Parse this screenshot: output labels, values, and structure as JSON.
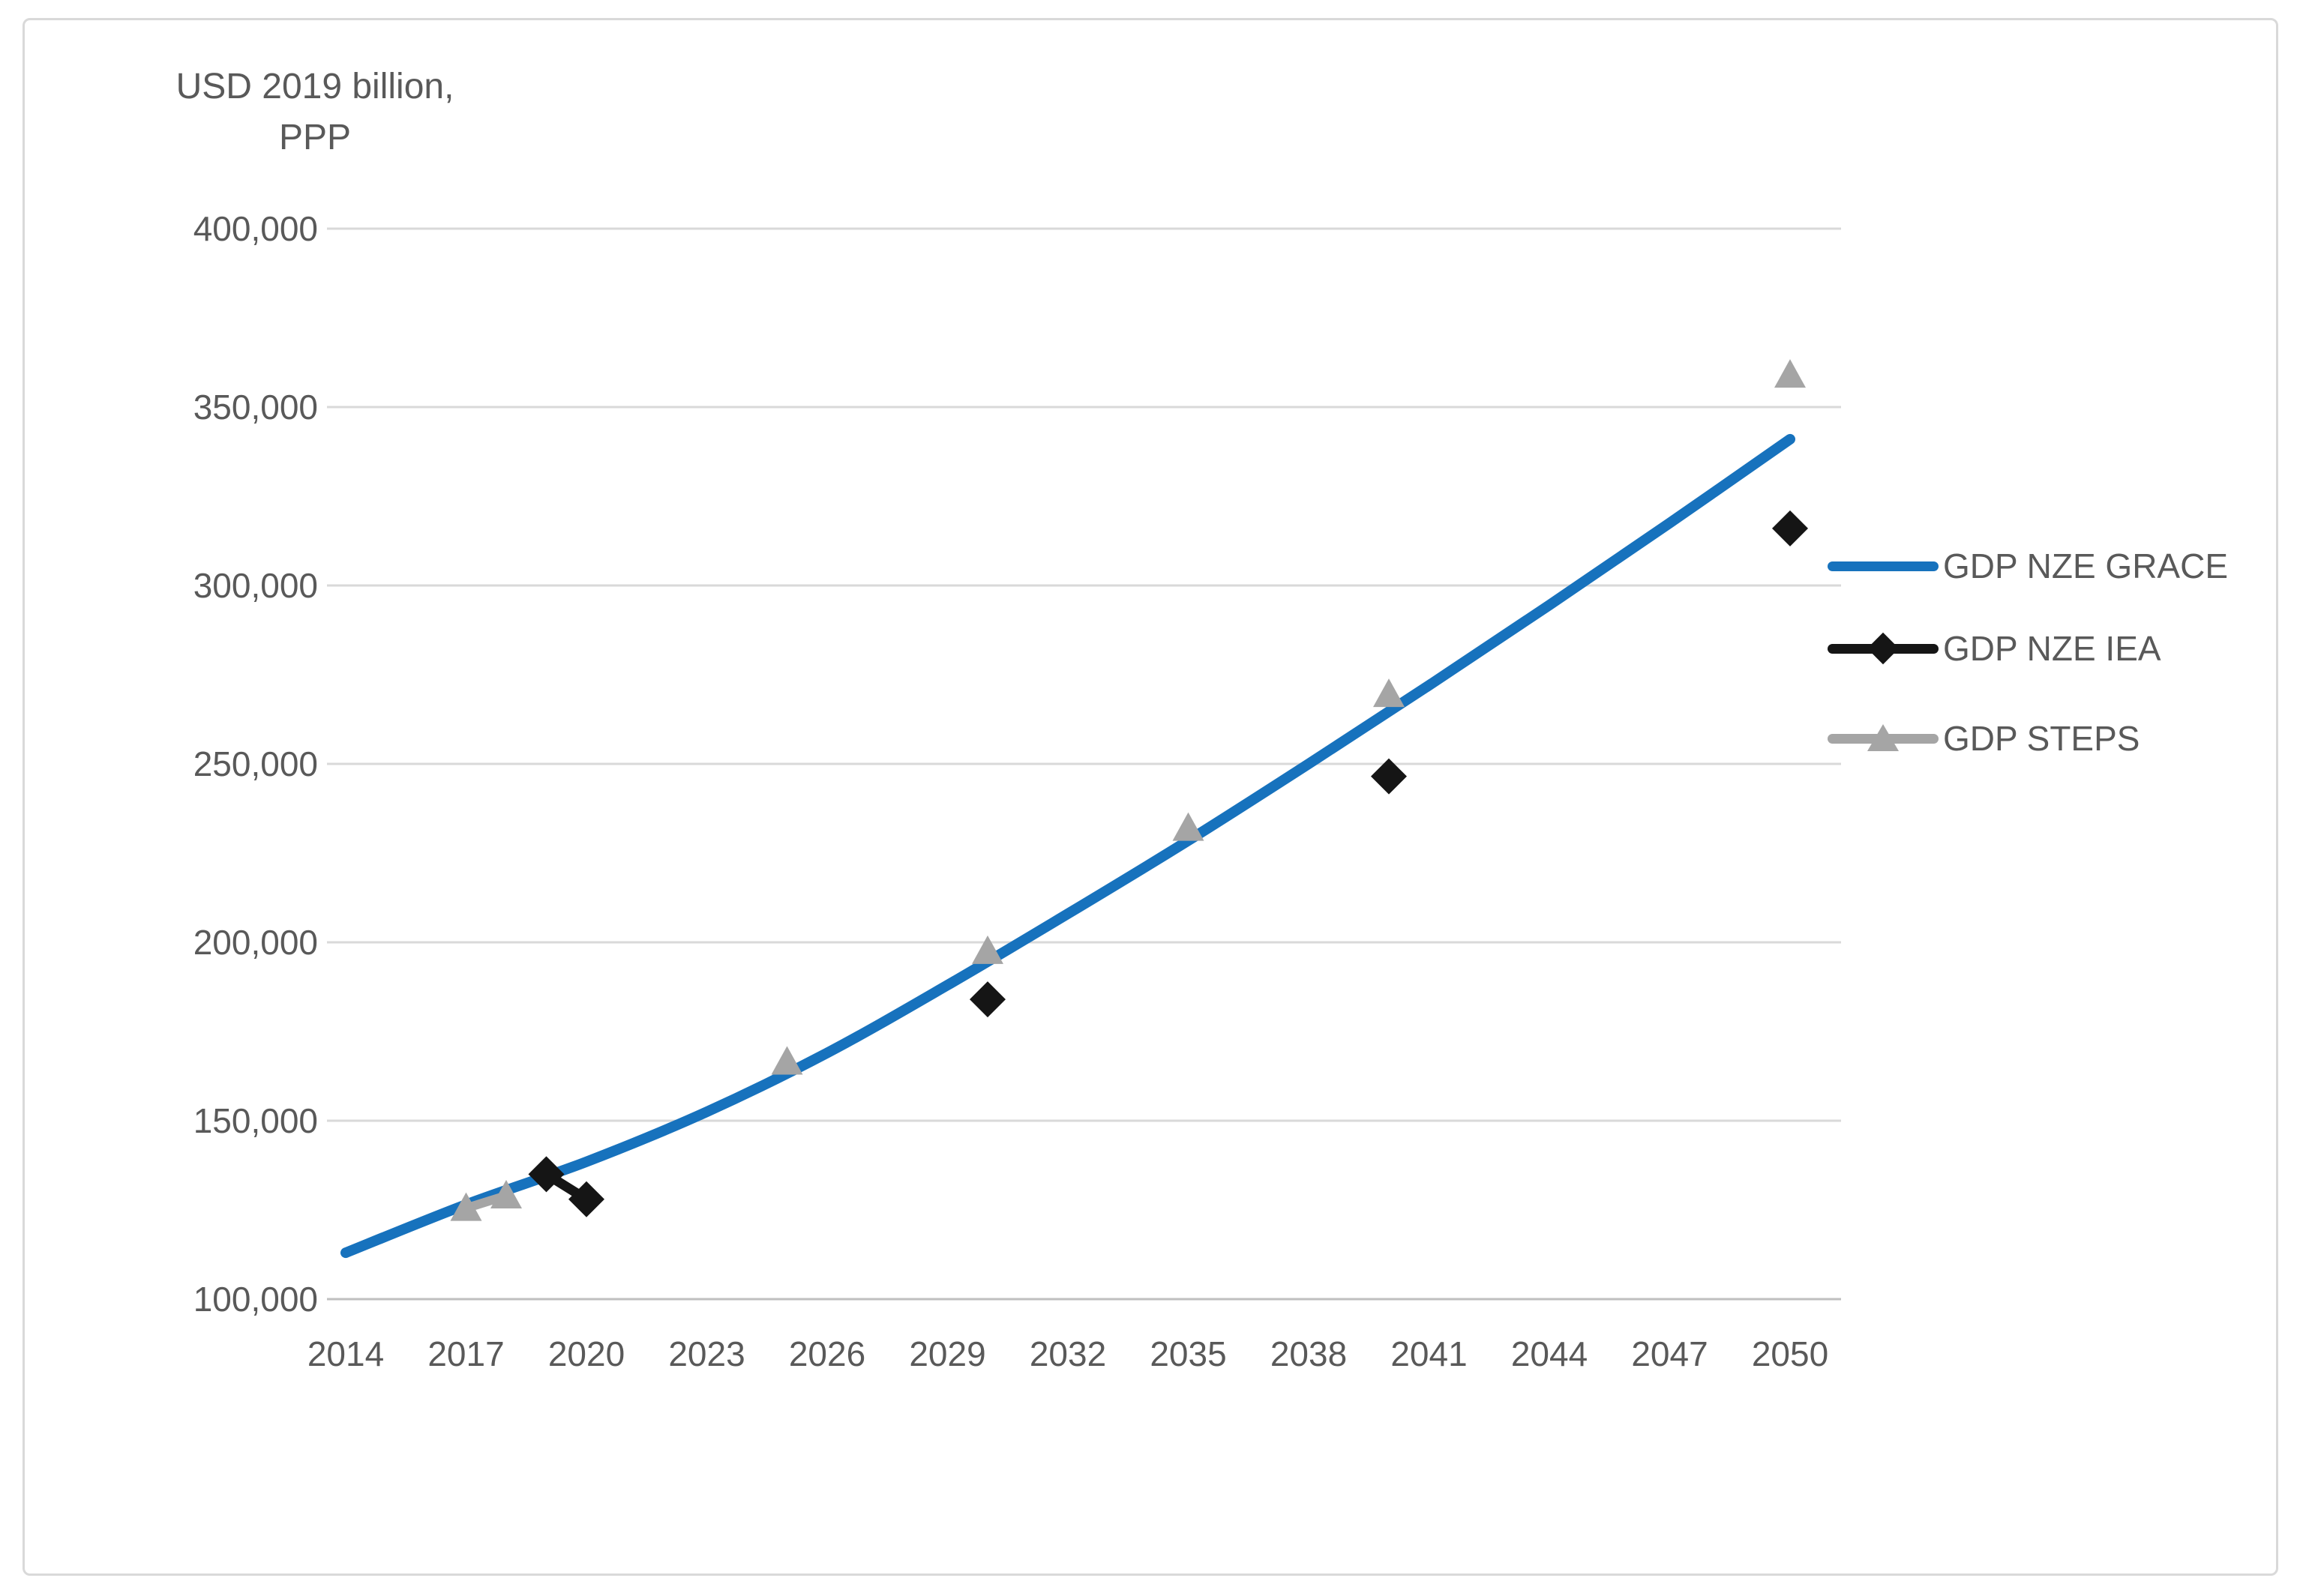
{
  "chart_data": {
    "type": "line",
    "title": "",
    "ylabel_lines": [
      "USD 2019 billion,",
      "PPP"
    ],
    "x_ticks": [
      "2014",
      "2017",
      "2020",
      "2023",
      "2026",
      "2029",
      "2032",
      "2035",
      "2038",
      "2041",
      "2044",
      "2047",
      "2050"
    ],
    "y_ticks": [
      {
        "value": 400000,
        "label": "400,000"
      },
      {
        "value": 350000,
        "label": "350,000"
      },
      {
        "value": 300000,
        "label": "300,000"
      },
      {
        "value": 250000,
        "label": "250,000"
      },
      {
        "value": 200000,
        "label": "200,000"
      },
      {
        "value": 150000,
        "label": "150,000"
      },
      {
        "value": 100000,
        "label": "100,000"
      }
    ],
    "ylim": [
      100000,
      400000
    ],
    "xlim": [
      2014,
      2050
    ],
    "grid": "horizontal-only",
    "legend_position": "right-middle",
    "series": [
      {
        "name": "GDP NZE GRACE",
        "marker": "none",
        "line": "smooth",
        "color": "#1772BD",
        "points": [
          [
            2014,
            113000
          ],
          [
            2017,
            126500
          ],
          [
            2020,
            138500
          ],
          [
            2023,
            152500
          ],
          [
            2026,
            169000
          ],
          [
            2029,
            188000
          ],
          [
            2032,
            208000
          ],
          [
            2035,
            228500
          ],
          [
            2038,
            250000
          ],
          [
            2041,
            272000
          ],
          [
            2044,
            294500
          ],
          [
            2047,
            317500
          ],
          [
            2050,
            341000
          ]
        ]
      },
      {
        "name": "GDP NZE IEA",
        "marker": "diamond",
        "line": "segment-first-two-points-only",
        "color": "#151515",
        "points": [
          [
            2019,
            135000
          ],
          [
            2020,
            128000
          ],
          [
            2030,
            184000
          ],
          [
            2040,
            246500
          ],
          [
            2050,
            316000
          ]
        ],
        "connected_segments": [
          [
            0,
            1
          ]
        ]
      },
      {
        "name": "GDP STEPS",
        "marker": "triangle",
        "line": "segment-first-two-points-only",
        "color": "#A5A5A5",
        "points": [
          [
            2017,
            125500
          ],
          [
            2018,
            129000
          ],
          [
            2025,
            166500
          ],
          [
            2030,
            197500
          ],
          [
            2035,
            232000
          ],
          [
            2040,
            269500
          ],
          [
            2050,
            359000
          ]
        ],
        "connected_segments": [
          [
            0,
            1
          ]
        ]
      }
    ]
  },
  "colors": {
    "background": "#FFFFFF",
    "frame_border": "#D9D9D9",
    "gridline": "#D9D9D9",
    "axis_line": "#BFBFBF",
    "text": "#595959"
  }
}
